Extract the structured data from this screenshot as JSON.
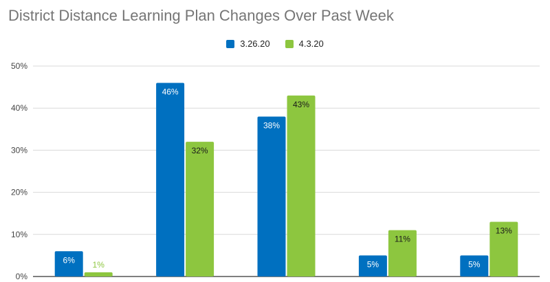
{
  "chart_data": {
    "type": "bar",
    "title": "District Distance Learning Plan Changes Over Past Week",
    "xlabel": "",
    "ylabel": "",
    "categories": [
      "",
      "",
      "",
      "",
      ""
    ],
    "series": [
      {
        "name": "3.26.20",
        "color": "#0070C0",
        "values": [
          6,
          46,
          38,
          5,
          5
        ],
        "labels": [
          "6%",
          "46%",
          "38%",
          "5%",
          "5%"
        ]
      },
      {
        "name": "4.3.20",
        "color": "#8DC63F",
        "values": [
          1,
          32,
          43,
          11,
          13
        ],
        "labels": [
          "1%",
          "32%",
          "43%",
          "11%",
          "13%"
        ]
      }
    ],
    "ylim": [
      0,
      50
    ],
    "yticks": [
      0,
      10,
      20,
      30,
      40,
      50
    ],
    "ytick_labels": [
      "0%",
      "10%",
      "20%",
      "30%",
      "40%",
      "50%"
    ],
    "grid": true,
    "legend_position": "top-center"
  }
}
